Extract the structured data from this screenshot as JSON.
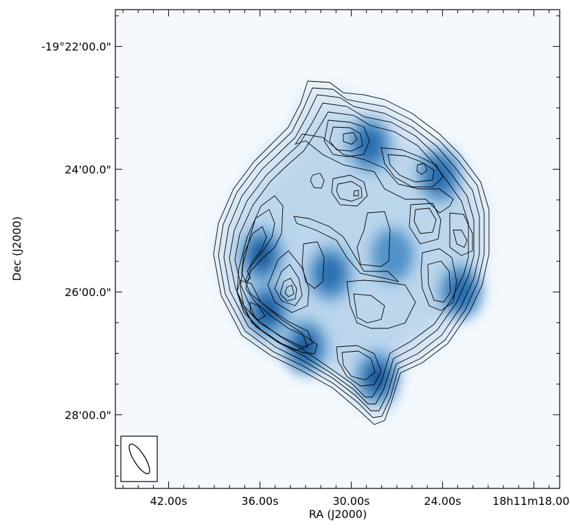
{
  "chart_data": {
    "type": "heatmap",
    "title": "",
    "xlabel": "RA (J2000)",
    "ylabel": "Dec (J2000)",
    "colormap": "Blues",
    "contours": "black",
    "grid": false,
    "x_ticks": [
      {
        "ra_s": 42.0,
        "label": "42.00s"
      },
      {
        "ra_s": 36.0,
        "label": "36.00s"
      },
      {
        "ra_s": 30.0,
        "label": "30.00s"
      },
      {
        "ra_s": 24.0,
        "label": "24.00s"
      },
      {
        "ra_s": 18.0,
        "label": "18h11m18.00s"
      }
    ],
    "y_ticks": [
      {
        "dec_arcmin": -22.0,
        "label": "-19°22'00.0\""
      },
      {
        "dec_arcmin": -24.0,
        "label": "24'00.0\""
      },
      {
        "dec_arcmin": -26.0,
        "label": "26'00.0\""
      },
      {
        "dec_arcmin": -28.0,
        "label": "28'00.0\""
      }
    ],
    "xlim": [
      45.5,
      16.3
    ],
    "ylim": [
      -29.2,
      -21.4
    ],
    "emission_peaks": [
      {
        "ra_s": 35.9,
        "dec_arcmin": -25.4,
        "intensity": 0.95
      },
      {
        "ra_s": 33.0,
        "dec_arcmin": -26.9,
        "intensity": 1.0
      },
      {
        "ra_s": 35.5,
        "dec_arcmin": -26.3,
        "intensity": 0.9
      },
      {
        "ra_s": 28.3,
        "dec_arcmin": -27.4,
        "intensity": 0.9
      },
      {
        "ra_s": 22.8,
        "dec_arcmin": -26.0,
        "intensity": 0.85
      },
      {
        "ra_s": 28.8,
        "dec_arcmin": -23.6,
        "intensity": 0.75
      },
      {
        "ra_s": 24.2,
        "dec_arcmin": -24.1,
        "intensity": 0.7
      },
      {
        "ra_s": 31.4,
        "dec_arcmin": -25.7,
        "intensity": 0.7
      },
      {
        "ra_s": 27.3,
        "dec_arcmin": -25.4,
        "intensity": 0.6
      }
    ]
  }
}
